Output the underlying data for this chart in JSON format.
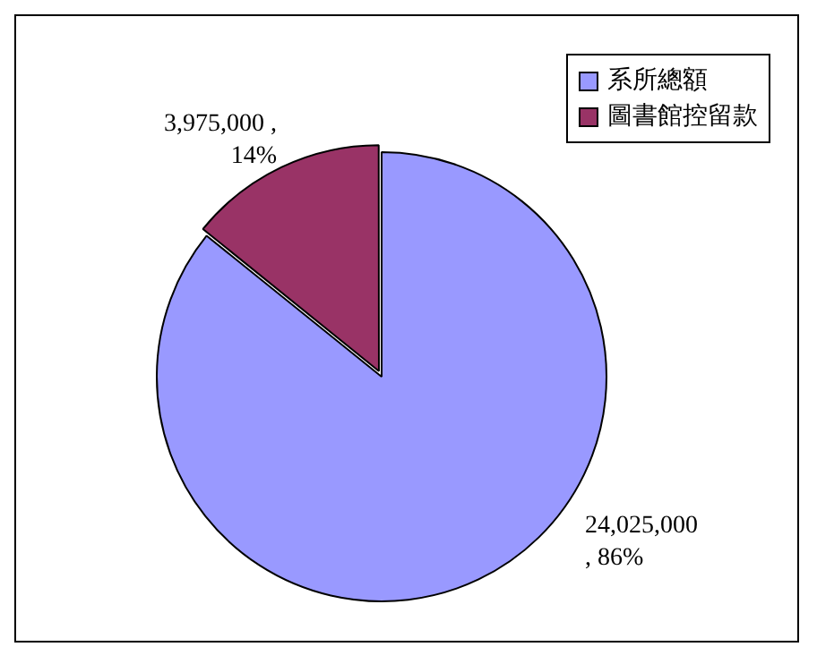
{
  "chart_data": {
    "type": "pie",
    "categories": [
      "系所總額",
      "圖書館控留款"
    ],
    "values": [
      24025000,
      3975000
    ],
    "colors": [
      "#9999ff",
      "#993366"
    ],
    "value_labels": [
      "24,025,000\n, 86%",
      "3,975,000 ,\n14%"
    ],
    "legend": "top right"
  }
}
